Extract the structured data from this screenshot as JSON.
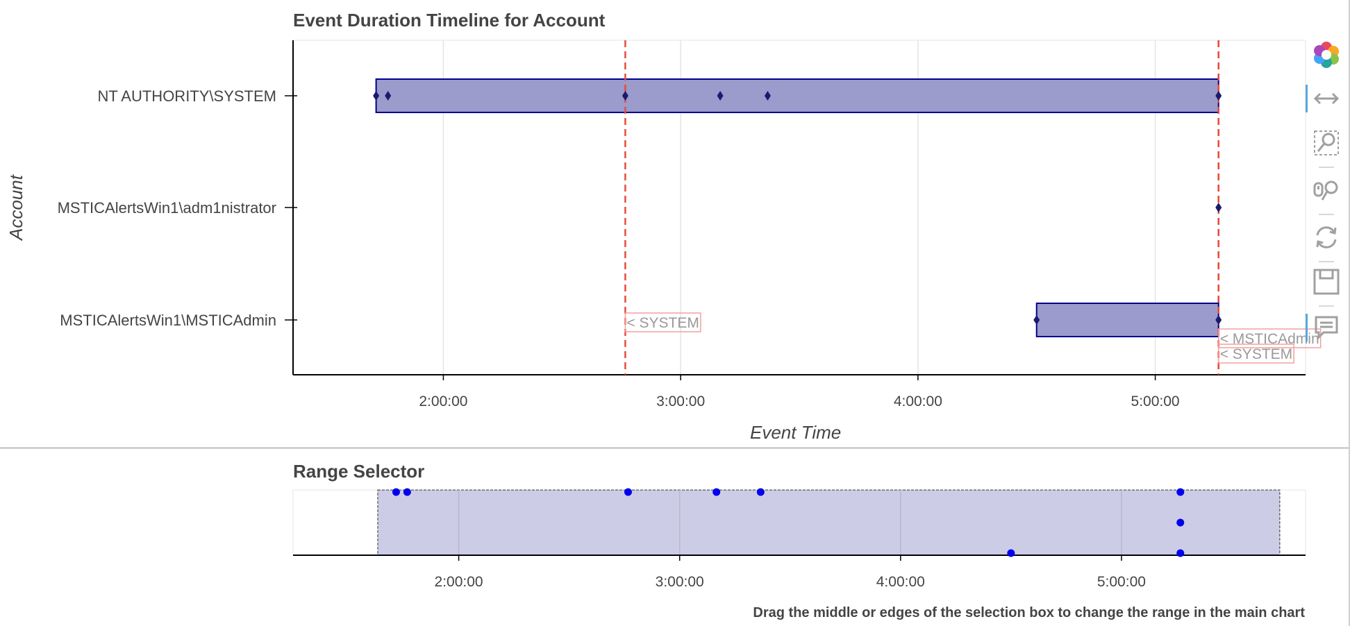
{
  "main_chart": {
    "title": "Event Duration Timeline for Account",
    "xlabel": "Event Time",
    "ylabel": "Account"
  },
  "range_selector": {
    "title": "Range Selector",
    "help_text": "Drag the middle or edges of the selection box to change the range in the main chart",
    "selection_range": [
      "1:38:00",
      "5:43:00"
    ]
  },
  "toolbar": {
    "tools": [
      "bokeh-logo-icon",
      "xpan-icon",
      "box-zoom-icon",
      "wheel-zoom-icon",
      "reset-icon",
      "save-icon",
      "hover-icon"
    ]
  },
  "chart_data": [
    {
      "type": "timeline",
      "title": "Event Duration Timeline for Account",
      "xlabel": "Event Time",
      "ylabel": "Account",
      "x_ticks": [
        "2:00:00",
        "3:00:00",
        "4:00:00",
        "5:00:00"
      ],
      "xlim": [
        "1:22:00",
        "5:38:00"
      ],
      "categories": [
        "NT AUTHORITY\\SYSTEM",
        "MSTICAlertsWin1\\adm1nistrator",
        "MSTICAlertsWin1\\MSTICAdmin"
      ],
      "durations": [
        {
          "account": "NT AUTHORITY\\SYSTEM",
          "start": "1:43:00",
          "end": "5:16:00"
        },
        {
          "account": "MSTICAlertsWin1\\MSTICAdmin",
          "start": "4:30:00",
          "end": "5:16:00"
        }
      ],
      "events": [
        {
          "account": "NT AUTHORITY\\SYSTEM",
          "time": "1:43:00"
        },
        {
          "account": "NT AUTHORITY\\SYSTEM",
          "time": "1:46:00"
        },
        {
          "account": "NT AUTHORITY\\SYSTEM",
          "time": "2:46:00"
        },
        {
          "account": "NT AUTHORITY\\SYSTEM",
          "time": "3:10:00"
        },
        {
          "account": "NT AUTHORITY\\SYSTEM",
          "time": "3:22:00"
        },
        {
          "account": "NT AUTHORITY\\SYSTEM",
          "time": "5:16:00"
        },
        {
          "account": "MSTICAlertsWin1\\adm1nistrator",
          "time": "5:16:00"
        },
        {
          "account": "MSTICAlertsWin1\\MSTICAdmin",
          "time": "4:30:00"
        },
        {
          "account": "MSTICAlertsWin1\\MSTICAdmin",
          "time": "5:16:00"
        }
      ],
      "reference_lines": [
        {
          "time": "2:46:00",
          "label": "< SYSTEM",
          "color": "#e74c3c"
        },
        {
          "time": "5:16:00",
          "label": "< MSTICAdmin",
          "color": "#e74c3c"
        },
        {
          "time": "5:16:00",
          "label": "< SYSTEM",
          "color": "#e74c3c"
        }
      ],
      "bar_color": "#9b9bcc",
      "bar_edge_color": "#00008b",
      "marker_color": "#1a1a70",
      "grid": true
    },
    {
      "type": "scatter",
      "title": "Range Selector",
      "x_ticks": [
        "2:00:00",
        "3:00:00",
        "4:00:00",
        "5:00:00"
      ],
      "xlim": [
        "1:15:00",
        "5:50:00"
      ],
      "points": [
        {
          "time": "1:43:00",
          "row": 0
        },
        {
          "time": "1:46:00",
          "row": 0
        },
        {
          "time": "2:46:00",
          "row": 0
        },
        {
          "time": "3:10:00",
          "row": 0
        },
        {
          "time": "3:22:00",
          "row": 0
        },
        {
          "time": "5:16:00",
          "row": 0
        },
        {
          "time": "5:16:00",
          "row": 1
        },
        {
          "time": "4:30:00",
          "row": 2
        },
        {
          "time": "5:16:00",
          "row": 2
        }
      ],
      "selection_color": "#cdcce6",
      "point_color": "#0000ee",
      "grid": true
    }
  ]
}
